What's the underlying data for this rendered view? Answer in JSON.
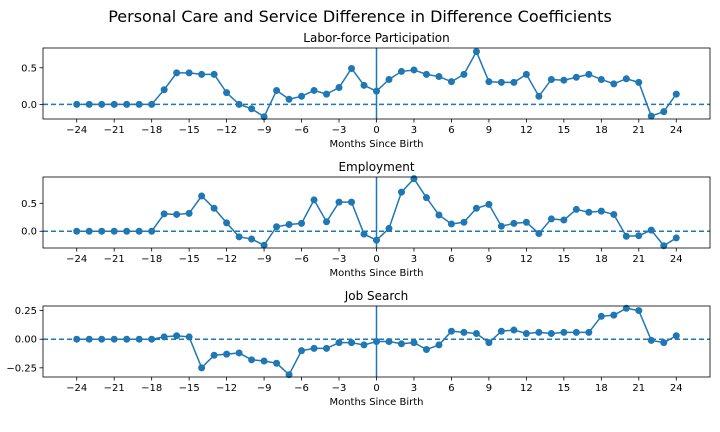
{
  "figure": {
    "title": "Personal Care and Service Difference in Difference Coefficients"
  },
  "chart_data": [
    {
      "type": "line",
      "title": "Labor-force Participation",
      "xlabel": "Months Since Birth",
      "ylabel": "",
      "xlim": [
        -26.7,
        26.7
      ],
      "ylim": [
        -0.2,
        0.77
      ],
      "xticks": [
        -24,
        -21,
        -18,
        -15,
        -12,
        -9,
        -6,
        -3,
        0,
        3,
        6,
        9,
        12,
        15,
        18,
        21,
        24
      ],
      "yticks": [
        0.0,
        0.5
      ],
      "ytick_labels": [
        "0.0",
        "0.5"
      ],
      "color": "#1f77b4",
      "x": [
        -24,
        -23,
        -22,
        -21,
        -20,
        -19,
        -18,
        -17,
        -16,
        -15,
        -14,
        -13,
        -12,
        -11,
        -10,
        -9,
        -8,
        -7,
        -6,
        -5,
        -4,
        -3,
        -2,
        -1,
        0,
        1,
        2,
        3,
        4,
        5,
        6,
        7,
        8,
        9,
        10,
        11,
        12,
        13,
        14,
        15,
        16,
        17,
        18,
        19,
        20,
        21,
        22,
        23,
        24
      ],
      "y": [
        0,
        0,
        0,
        0,
        0,
        0,
        0,
        0.2,
        0.43,
        0.43,
        0.41,
        0.41,
        0.16,
        0,
        -0.06,
        -0.17,
        0.19,
        0.07,
        0.11,
        0.19,
        0.14,
        0.23,
        0.49,
        0.26,
        0.18,
        0.34,
        0.45,
        0.47,
        0.41,
        0.38,
        0.31,
        0.41,
        0.72,
        0.31,
        0.3,
        0.3,
        0.41,
        0.11,
        0.34,
        0.33,
        0.37,
        0.41,
        0.34,
        0.28,
        0.35,
        0.3,
        -0.16,
        -0.1,
        0.14
      ]
    },
    {
      "type": "line",
      "title": "Employment",
      "xlabel": "Months Since Birth",
      "ylabel": "",
      "xlim": [
        -26.7,
        26.7
      ],
      "ylim": [
        -0.3,
        0.97
      ],
      "xticks": [
        -24,
        -21,
        -18,
        -15,
        -12,
        -9,
        -6,
        -3,
        0,
        3,
        6,
        9,
        12,
        15,
        18,
        21,
        24
      ],
      "yticks": [
        0.0,
        0.5
      ],
      "ytick_labels": [
        "0.0",
        "0.5"
      ],
      "color": "#1f77b4",
      "x": [
        -24,
        -23,
        -22,
        -21,
        -20,
        -19,
        -18,
        -17,
        -16,
        -15,
        -14,
        -13,
        -12,
        -11,
        -10,
        -9,
        -8,
        -7,
        -6,
        -5,
        -4,
        -3,
        -2,
        -1,
        0,
        1,
        2,
        3,
        4,
        5,
        6,
        7,
        8,
        9,
        10,
        11,
        12,
        13,
        14,
        15,
        16,
        17,
        18,
        19,
        20,
        21,
        22,
        23,
        24
      ],
      "y": [
        0,
        0,
        0,
        0,
        0,
        0,
        0,
        0.31,
        0.3,
        0.32,
        0.63,
        0.41,
        0.15,
        -0.1,
        -0.14,
        -0.25,
        0.08,
        0.12,
        0.14,
        0.56,
        0.17,
        0.52,
        0.52,
        -0.05,
        -0.16,
        0.05,
        0.7,
        0.94,
        0.6,
        0.29,
        0.13,
        0.16,
        0.41,
        0.48,
        0.09,
        0.14,
        0.16,
        -0.04,
        0.22,
        0.2,
        0.39,
        0.34,
        0.36,
        0.3,
        -0.09,
        -0.08,
        0.02,
        -0.26,
        -0.12
      ]
    },
    {
      "type": "line",
      "title": "Job Search",
      "xlabel": "Months Since Birth",
      "ylabel": "",
      "xlim": [
        -26.7,
        26.7
      ],
      "ylim": [
        -0.33,
        0.29
      ],
      "xticks": [
        -24,
        -21,
        -18,
        -15,
        -12,
        -9,
        -6,
        -3,
        0,
        3,
        6,
        9,
        12,
        15,
        18,
        21,
        24
      ],
      "yticks": [
        -0.25,
        0.0,
        0.25
      ],
      "ytick_labels": [
        "−0.25",
        "0.00",
        "0.25"
      ],
      "color": "#1f77b4",
      "x": [
        -24,
        -23,
        -22,
        -21,
        -20,
        -19,
        -18,
        -17,
        -16,
        -15,
        -14,
        -13,
        -12,
        -11,
        -10,
        -9,
        -8,
        -7,
        -6,
        -5,
        -4,
        -3,
        -2,
        -1,
        0,
        1,
        2,
        3,
        4,
        5,
        6,
        7,
        8,
        9,
        10,
        11,
        12,
        13,
        14,
        15,
        16,
        17,
        18,
        19,
        20,
        21,
        22,
        23,
        24
      ],
      "y": [
        0,
        0,
        0,
        0,
        0,
        0,
        0,
        0.02,
        0.03,
        0.02,
        -0.25,
        -0.14,
        -0.13,
        -0.12,
        -0.18,
        -0.19,
        -0.21,
        -0.31,
        -0.1,
        -0.08,
        -0.08,
        -0.03,
        -0.03,
        -0.05,
        -0.02,
        -0.02,
        -0.04,
        -0.03,
        -0.09,
        -0.05,
        0.07,
        0.06,
        0.05,
        -0.03,
        0.07,
        0.08,
        0.05,
        0.06,
        0.05,
        0.06,
        0.06,
        0.06,
        0.2,
        0.21,
        0.27,
        0.25,
        -0.01,
        -0.03,
        0.03
      ]
    }
  ]
}
